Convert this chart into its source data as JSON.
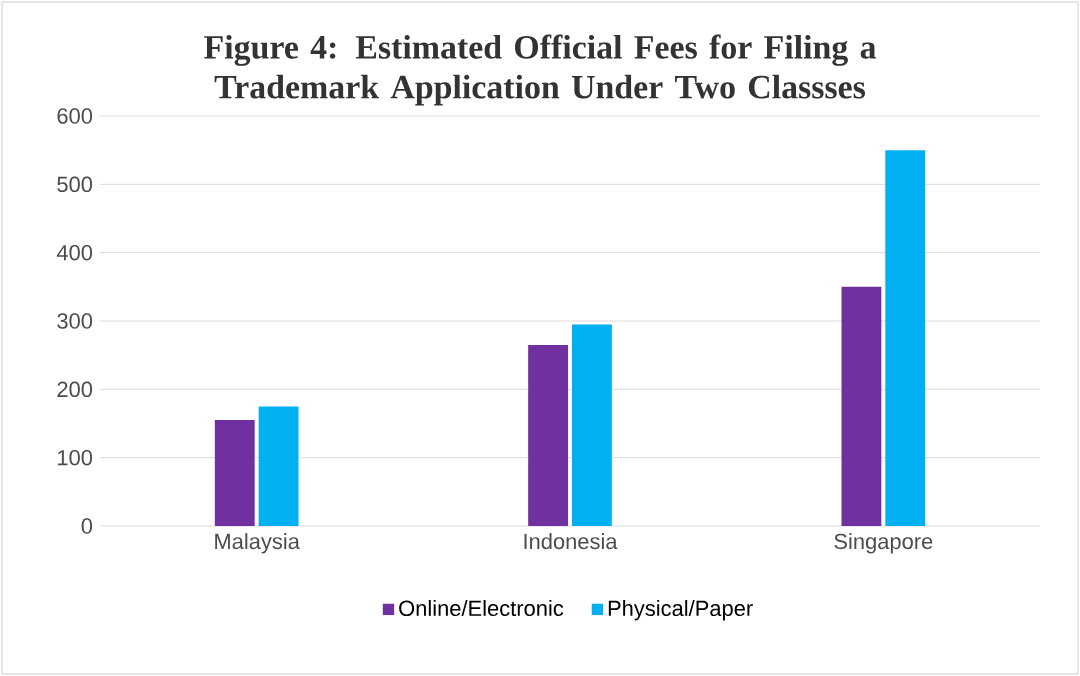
{
  "chart_data": {
    "type": "bar",
    "title": "Figure 4: Estimated Official Fees for Filing a Trademark Application Under Two Classses",
    "categories": [
      "Malaysia",
      "Indonesia",
      "Singapore"
    ],
    "series": [
      {
        "name": "Online/Electronic",
        "color": "#7030a0",
        "values": [
          155,
          265,
          350
        ]
      },
      {
        "name": "Physical/Paper",
        "color": "#00b0f0",
        "values": [
          175,
          295,
          550
        ]
      }
    ],
    "ylim": [
      0,
      600
    ],
    "yticks": [
      0,
      100,
      200,
      300,
      400,
      500,
      600
    ],
    "grid": "y",
    "legend": "bottom"
  }
}
